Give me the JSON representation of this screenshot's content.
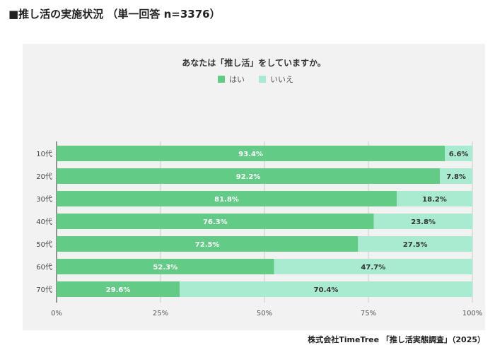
{
  "page_title": "■推し活の実施状況 （単一回答 n=3376）",
  "source": "株式会社TimeTree 「推し活実態調査」（2025）",
  "chart_data": {
    "type": "bar",
    "orientation": "horizontal",
    "stacked": true,
    "title": "あなたは「推し活」をしていますか。",
    "categories": [
      "10代",
      "20代",
      "30代",
      "40代",
      "50代",
      "60代",
      "70代"
    ],
    "series": [
      {
        "name": "はい",
        "values": [
          93.4,
          92.2,
          81.8,
          76.3,
          72.5,
          52.3,
          29.6
        ],
        "color": "#62cc86"
      },
      {
        "name": "いいえ",
        "values": [
          6.6,
          7.8,
          18.2,
          23.8,
          27.5,
          47.7,
          70.4
        ],
        "color": "#a8ebd0"
      }
    ],
    "xlim": [
      0,
      100
    ],
    "xticks": [
      "0%",
      "25%",
      "50%",
      "75%",
      "100%"
    ],
    "legend": "top",
    "grid": true
  }
}
